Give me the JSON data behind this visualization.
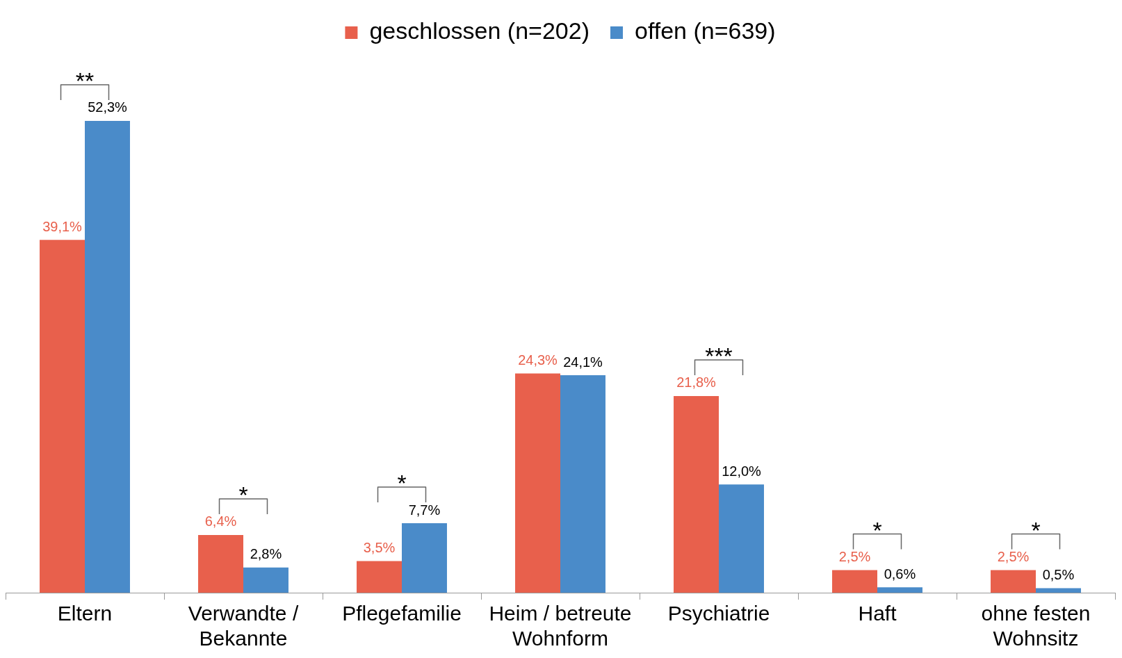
{
  "chart_data": {
    "type": "bar",
    "categories": [
      "Eltern",
      "Verwandte / Bekannte",
      "Pflegefamilie",
      "Heim / betreute Wohnform",
      "Psychiatrie",
      "Haft",
      "ohne festen Wohnsitz"
    ],
    "series": [
      {
        "name": "geschlossen (n=202)",
        "color": "#e8604c",
        "values": [
          39.1,
          6.4,
          3.5,
          24.3,
          21.8,
          2.5,
          2.5
        ],
        "value_labels": [
          "39,1%",
          "6,4%",
          "3,5%",
          "24,3%",
          "21,8%",
          "2,5%",
          "2,5%"
        ]
      },
      {
        "name": "offen (n=639)",
        "color": "#4a8bc9",
        "values": [
          52.3,
          2.8,
          7.7,
          24.1,
          12.0,
          0.6,
          0.5
        ],
        "value_labels": [
          "52,3%",
          "2,8%",
          "7,7%",
          "24,1%",
          "12,0%",
          "0,6%",
          "0,5%"
        ]
      }
    ],
    "annotations": [
      {
        "text": "**",
        "x": "Eltern",
        "y": 52.3
      },
      {
        "text": "*",
        "x": "Verwandte / Bekannte",
        "y": 6.4
      },
      {
        "text": "*",
        "x": "Pflegefamilie",
        "y": 7.7
      },
      {
        "text": "***",
        "x": "Psychiatrie",
        "y": 21.8
      },
      {
        "text": "*",
        "x": "Haft",
        "y": 2.5
      },
      {
        "text": "*",
        "x": "ohne festen Wohnsitz",
        "y": 2.5
      }
    ],
    "legend": "top",
    "grid": false
  }
}
